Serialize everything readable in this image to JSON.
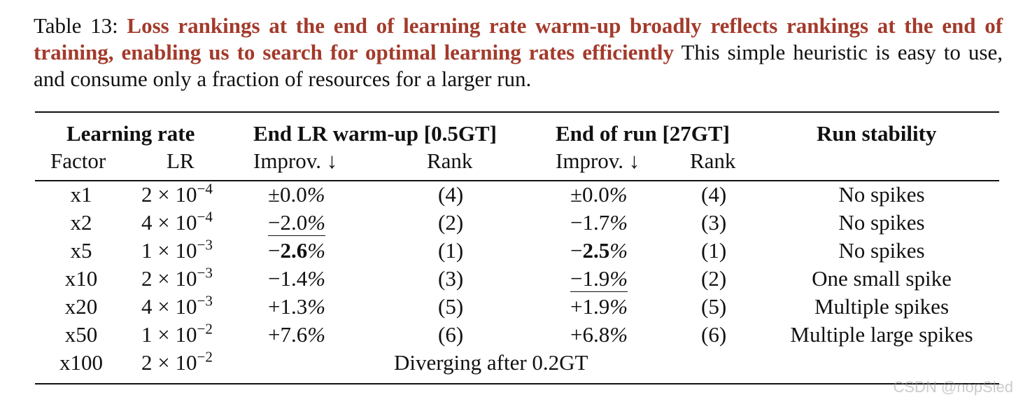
{
  "caption": {
    "label": "Table 13:",
    "title": "Loss rankings at the end of learning rate warm-up broadly reflects rankings at the end of training, enabling us to search for optimal learning rates efficiently",
    "body": "This simple heuristic is easy to use, and consume only a fraction of resources for a larger run."
  },
  "headers": {
    "group_lr": "Learning rate",
    "group_warmup": "End LR warm-up [0.5GT]",
    "group_end": "End of run [27GT]",
    "group_stability": "Run stability",
    "factor": "Factor",
    "lr": "LR",
    "improv_warmup": "Improv. ↓",
    "rank_warmup": "Rank",
    "improv_end": "Improv. ↓",
    "rank_end": "Rank"
  },
  "rows": [
    {
      "factor": "x1",
      "lr_mant": "2 × 10",
      "lr_exp": "−4",
      "w_sign": "±",
      "w_num": "0.0",
      "w_pct": "%",
      "w_rank": "(4)",
      "e_sign": "±",
      "e_num": "0.0",
      "e_pct": "%",
      "e_rank": "(4)",
      "stability": "No spikes"
    },
    {
      "factor": "x2",
      "lr_mant": "4 × 10",
      "lr_exp": "−4",
      "w_sign": "−",
      "w_num": "2.0",
      "w_pct": "%",
      "w_rank": "(2)",
      "e_sign": "−",
      "e_num": "1.7",
      "e_pct": "%",
      "e_rank": "(3)",
      "stability": "No spikes"
    },
    {
      "factor": "x5",
      "lr_mant": "1 × 10",
      "lr_exp": "−3",
      "w_sign": "−",
      "w_num": "2.6",
      "w_pct": "%",
      "w_rank": "(1)",
      "e_sign": "−",
      "e_num": "2.5",
      "e_pct": "%",
      "e_rank": "(1)",
      "stability": "No spikes"
    },
    {
      "factor": "x10",
      "lr_mant": "2 × 10",
      "lr_exp": "−3",
      "w_sign": "−",
      "w_num": "1.4",
      "w_pct": "%",
      "w_rank": "(3)",
      "e_sign": "−",
      "e_num": "1.9",
      "e_pct": "%",
      "e_rank": "(2)",
      "stability": "One small spike"
    },
    {
      "factor": "x20",
      "lr_mant": "4 × 10",
      "lr_exp": "−3",
      "w_sign": "+",
      "w_num": "1.3",
      "w_pct": "%",
      "w_rank": "(5)",
      "e_sign": "+",
      "e_num": "1.9",
      "e_pct": "%",
      "e_rank": "(5)",
      "stability": "Multiple spikes"
    },
    {
      "factor": "x50",
      "lr_mant": "1 × 10",
      "lr_exp": "−2",
      "w_sign": "+",
      "w_num": "7.6",
      "w_pct": "%",
      "w_rank": "(6)",
      "e_sign": "+",
      "e_num": "6.8",
      "e_pct": "%",
      "e_rank": "(6)",
      "stability": "Multiple large spikes"
    },
    {
      "factor": "x100",
      "lr_mant": "2 × 10",
      "lr_exp": "−2",
      "diverging": "Diverging after 0.2GT"
    }
  ],
  "watermark": "CSDN @nopSled"
}
